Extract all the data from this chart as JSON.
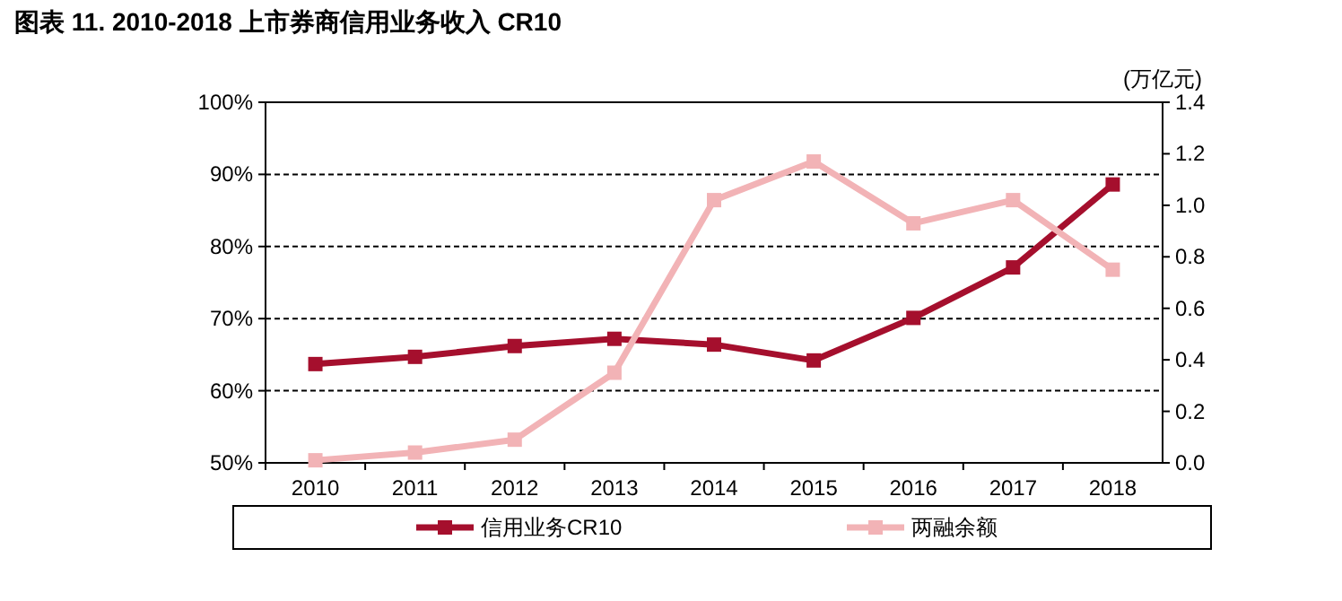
{
  "chart_data": {
    "type": "line",
    "title": "图表 11. 2010-2018 上市券商信用业务收入 CR10",
    "y2label": "(万亿元)",
    "categories": [
      "2010",
      "2011",
      "2012",
      "2013",
      "2014",
      "2015",
      "2016",
      "2017",
      "2018"
    ],
    "series": [
      {
        "name": "信用业务CR10",
        "color": "#a50f2d",
        "values": [
          63.7,
          64.7,
          66.2,
          67.2,
          66.4,
          64.2,
          70.1,
          77.1,
          88.6
        ]
      },
      {
        "name": "两融余额",
        "color": "#f2b3b6",
        "axis": "y2",
        "values": [
          0.01,
          0.04,
          0.09,
          0.35,
          1.02,
          1.17,
          0.93,
          1.02,
          0.75
        ]
      }
    ],
    "ylim": [
      50,
      100
    ],
    "yticks": [
      {
        "value": 50,
        "label": "50%"
      },
      {
        "value": 60,
        "label": "60%"
      },
      {
        "value": 70,
        "label": "70%"
      },
      {
        "value": 80,
        "label": "80%"
      },
      {
        "value": 90,
        "label": "90%"
      },
      {
        "value": 100,
        "label": "100%"
      }
    ],
    "y2lim": [
      0,
      1.4
    ],
    "y2ticks": [
      {
        "value": 0,
        "label": "0.0"
      },
      {
        "value": 0.2,
        "label": "0.2"
      },
      {
        "value": 0.4,
        "label": "0.4"
      },
      {
        "value": 0.6,
        "label": "0.6"
      },
      {
        "value": 0.8,
        "label": "0.8"
      },
      {
        "value": 1.0,
        "label": "1.0"
      },
      {
        "value": 1.2,
        "label": "1.2"
      },
      {
        "value": 1.4,
        "label": "1.4"
      }
    ],
    "grid": "y",
    "legend": "bottom",
    "marker": "square",
    "line_style": "solid"
  }
}
